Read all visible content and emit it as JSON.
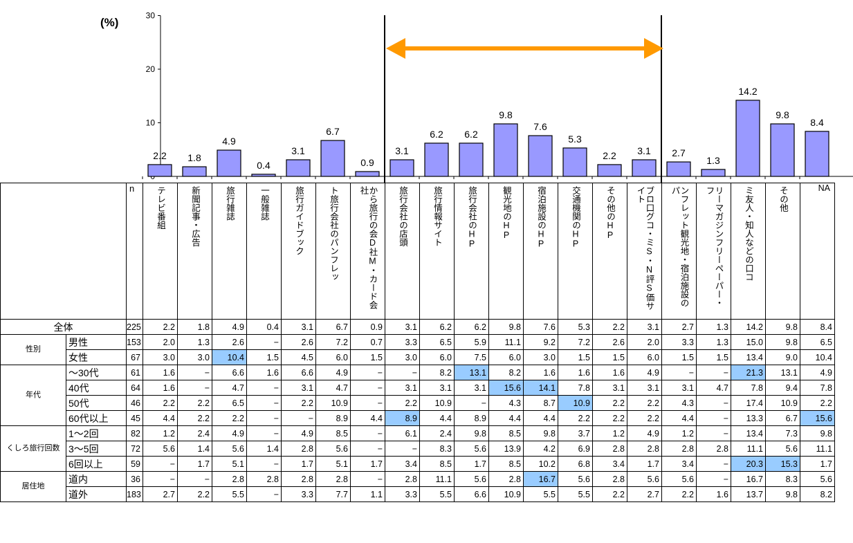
{
  "chart_data": {
    "type": "bar",
    "unit_label": "(%)",
    "ylim": [
      0,
      30
    ],
    "yticks": [
      0,
      10,
      20,
      30
    ],
    "categories": [
      "テレビ番組",
      "新聞記事・広告",
      "旅行雑誌",
      "一般雑誌",
      "旅行ガイドブック",
      "旅行会社のパンフレット",
      "旅行会社・カード会社からのDM",
      "旅行会社の店頭",
      "旅行情報サイト",
      "旅行会社のHP",
      "観光地のHP",
      "宿泊施設のHP",
      "交通機関のHP",
      "その他のHP",
      "ブログ・SNS口コミ・評価サイト",
      "観光地・宿泊施設のパンフレット",
      "フリーペーパー・フリーマガジン",
      "友人・知人などの口コミ",
      "その他",
      "NA"
    ],
    "values": [
      2.2,
      1.8,
      4.9,
      0.4,
      3.1,
      6.7,
      0.9,
      3.1,
      6.2,
      6.2,
      9.8,
      7.6,
      5.3,
      2.2,
      3.1,
      2.7,
      1.3,
      14.2,
      9.8,
      8.4
    ],
    "value_labels": [
      "2.2",
      "1.8",
      "4.9",
      "0.4",
      "3.1",
      "6.7",
      "0.9",
      "3.1",
      "6.2",
      "6.2",
      "9.8",
      "7.6",
      "5.3",
      "2.2",
      "3.1",
      "2.7",
      "1.3",
      "14.2",
      "9.8",
      "8.4"
    ],
    "highlight_span": {
      "from_index": 7,
      "to_index": 14
    },
    "bar_color": "#9999ff",
    "arrow_color": "#ff9900"
  },
  "table": {
    "n_header": "n",
    "column_headers": [
      "テレビ番組",
      "新聞記事・広告",
      "旅行雑誌",
      "一般雑誌",
      "旅行ガイドブック",
      "旅行会社のパンフレット",
      "旅行会社からのDM・カード会社",
      "旅行会社の店頭",
      "旅行情報サイト",
      "旅行会社のHP",
      "観光地のHP",
      "宿泊施設のHP",
      "交通機関のHP",
      "その他のHP",
      "口コミ・評価サイトブログ・SNS",
      "観光地・宿泊施設のパンフレット",
      "フリーペーパー・フリーマガジン",
      "友人・知人などの口コミ",
      "その他",
      "NA"
    ],
    "column_headers_display": [
      "テレビ番組",
      "新聞記事・広告",
      "旅行雑誌",
      "一般雑誌",
      "旅行ガイドブック",
      "ト旅行会社のパンフレッ",
      "から旅行の会D社M・カード会社",
      "旅行会社の店頭",
      "旅行情報サイト",
      "旅行会社のHP",
      "観光地のHP",
      "宿泊施設のHP",
      "交通機関のHP",
      "その他のHP",
      "ブロ口グコ・ミS・N評S価サイト",
      "ンフレット観光地・宿泊施設のパ",
      "リーマガジンフリーペーパー・フ",
      "ミ友人・知人などの口コ",
      "その他",
      "NA"
    ],
    "groups": [
      {
        "label": "",
        "rows": [
          {
            "label": "全体",
            "n": "225",
            "values": [
              "2.2",
              "1.8",
              "4.9",
              "0.4",
              "3.1",
              "6.7",
              "0.9",
              "3.1",
              "6.2",
              "6.2",
              "9.8",
              "7.6",
              "5.3",
              "2.2",
              "3.1",
              "2.7",
              "1.3",
              "14.2",
              "9.8",
              "8.4"
            ],
            "highlight": []
          }
        ]
      },
      {
        "label": "性別",
        "rows": [
          {
            "label": "男性",
            "n": "153",
            "values": [
              "2.0",
              "1.3",
              "2.6",
              "−",
              "2.6",
              "7.2",
              "0.7",
              "3.3",
              "6.5",
              "5.9",
              "11.1",
              "9.2",
              "7.2",
              "2.6",
              "2.0",
              "3.3",
              "1.3",
              "15.0",
              "9.8",
              "6.5"
            ],
            "highlight": []
          },
          {
            "label": "女性",
            "n": "67",
            "values": [
              "3.0",
              "3.0",
              "10.4",
              "1.5",
              "4.5",
              "6.0",
              "1.5",
              "3.0",
              "6.0",
              "7.5",
              "6.0",
              "3.0",
              "1.5",
              "1.5",
              "6.0",
              "1.5",
              "1.5",
              "13.4",
              "9.0",
              "10.4"
            ],
            "highlight": [
              2
            ]
          }
        ]
      },
      {
        "label": "年代",
        "rows": [
          {
            "label": "〜30代",
            "n": "61",
            "values": [
              "1.6",
              "−",
              "6.6",
              "1.6",
              "6.6",
              "4.9",
              "−",
              "−",
              "8.2",
              "13.1",
              "8.2",
              "1.6",
              "1.6",
              "1.6",
              "4.9",
              "−",
              "−",
              "21.3",
              "13.1",
              "4.9"
            ],
            "highlight": [
              9,
              17
            ]
          },
          {
            "label": "40代",
            "n": "64",
            "values": [
              "1.6",
              "−",
              "4.7",
              "−",
              "3.1",
              "4.7",
              "−",
              "3.1",
              "3.1",
              "3.1",
              "15.6",
              "14.1",
              "7.8",
              "3.1",
              "3.1",
              "3.1",
              "4.7",
              "7.8",
              "9.4",
              "7.8"
            ],
            "highlight": [
              10,
              11
            ]
          },
          {
            "label": "50代",
            "n": "46",
            "values": [
              "2.2",
              "2.2",
              "6.5",
              "−",
              "2.2",
              "10.9",
              "−",
              "2.2",
              "10.9",
              "−",
              "4.3",
              "8.7",
              "10.9",
              "2.2",
              "2.2",
              "4.3",
              "−",
              "17.4",
              "10.9",
              "2.2"
            ],
            "highlight": [
              12
            ]
          },
          {
            "label": "60代以上",
            "n": "45",
            "values": [
              "4.4",
              "2.2",
              "2.2",
              "−",
              "−",
              "8.9",
              "4.4",
              "8.9",
              "4.4",
              "8.9",
              "4.4",
              "4.4",
              "2.2",
              "2.2",
              "2.2",
              "4.4",
              "−",
              "13.3",
              "6.7",
              "15.6"
            ],
            "highlight": [
              7,
              19
            ]
          }
        ]
      },
      {
        "label": "くしろ旅行回数",
        "rows": [
          {
            "label": "1〜2回",
            "n": "82",
            "values": [
              "1.2",
              "2.4",
              "4.9",
              "−",
              "4.9",
              "8.5",
              "−",
              "6.1",
              "2.4",
              "9.8",
              "8.5",
              "9.8",
              "3.7",
              "1.2",
              "4.9",
              "1.2",
              "−",
              "13.4",
              "7.3",
              "9.8"
            ],
            "highlight": []
          },
          {
            "label": "3〜5回",
            "n": "72",
            "values": [
              "5.6",
              "1.4",
              "5.6",
              "1.4",
              "2.8",
              "5.6",
              "−",
              "−",
              "8.3",
              "5.6",
              "13.9",
              "4.2",
              "6.9",
              "2.8",
              "2.8",
              "2.8",
              "2.8",
              "11.1",
              "5.6",
              "11.1"
            ],
            "highlight": []
          },
          {
            "label": "6回以上",
            "n": "59",
            "values": [
              "−",
              "1.7",
              "5.1",
              "−",
              "1.7",
              "5.1",
              "1.7",
              "3.4",
              "8.5",
              "1.7",
              "8.5",
              "10.2",
              "6.8",
              "3.4",
              "1.7",
              "3.4",
              "−",
              "20.3",
              "15.3",
              "1.7"
            ],
            "highlight": [
              17,
              18
            ]
          }
        ]
      },
      {
        "label": "居住地",
        "rows": [
          {
            "label": "道内",
            "n": "36",
            "values": [
              "−",
              "−",
              "2.8",
              "2.8",
              "2.8",
              "2.8",
              "−",
              "2.8",
              "11.1",
              "5.6",
              "2.8",
              "16.7",
              "5.6",
              "2.8",
              "5.6",
              "5.6",
              "−",
              "16.7",
              "8.3",
              "5.6"
            ],
            "highlight": [
              11
            ]
          },
          {
            "label": "道外",
            "n": "183",
            "values": [
              "2.7",
              "2.2",
              "5.5",
              "−",
              "3.3",
              "7.7",
              "1.1",
              "3.3",
              "5.5",
              "6.6",
              "10.9",
              "5.5",
              "5.5",
              "2.2",
              "2.7",
              "2.2",
              "1.6",
              "13.7",
              "9.8",
              "8.2"
            ],
            "highlight": []
          }
        ]
      }
    ]
  }
}
